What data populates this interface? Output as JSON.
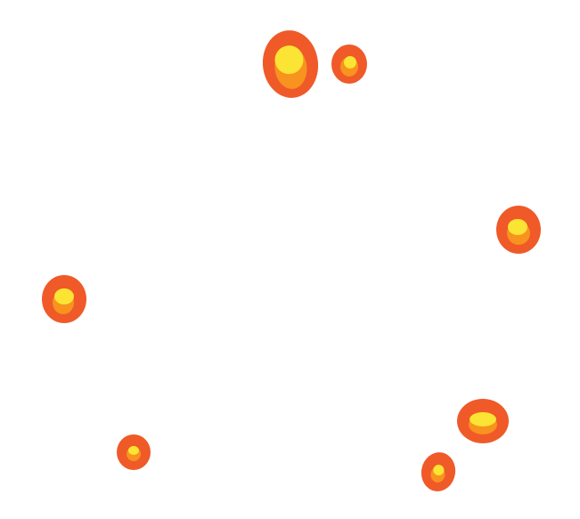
{
  "scene": {
    "background": "#ffffff",
    "colors": {
      "outer": "#ef5a28",
      "middle": "#f7931e",
      "core": "#fbe433"
    },
    "items": [
      {
        "name": "blob-large-top"
      },
      {
        "name": "blob-small-top"
      },
      {
        "name": "blob-right"
      },
      {
        "name": "blob-left"
      },
      {
        "name": "blob-bottom-left"
      },
      {
        "name": "blob-bottom-right"
      },
      {
        "name": "blob-bottom-right-small"
      }
    ]
  }
}
